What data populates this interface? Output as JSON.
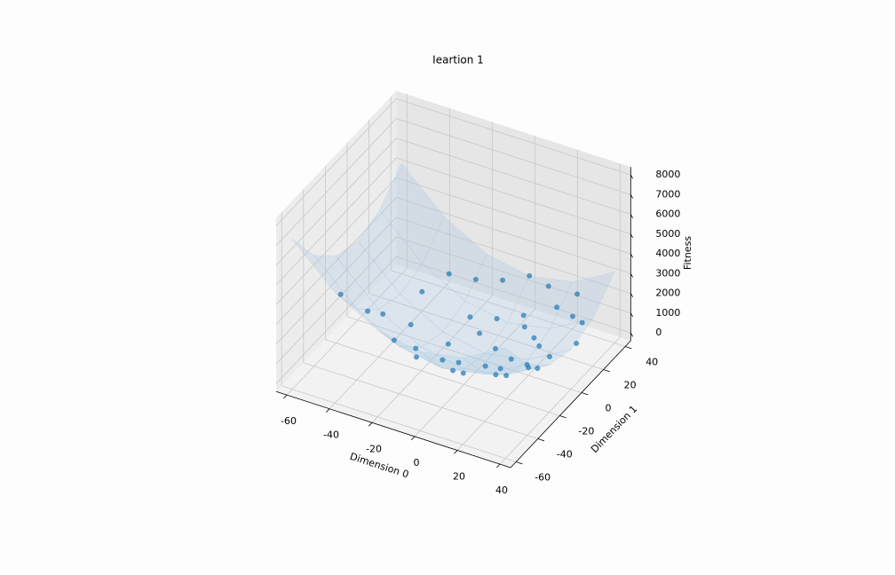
{
  "chart_data": {
    "type": "scatter3d",
    "title": "Ieartion 1",
    "xlabel": "Dimension 0",
    "ylabel": "Dimension 1",
    "zlabel": "Fitness",
    "xlim": [
      -65,
      45
    ],
    "ylim": [
      -65,
      45
    ],
    "zlim": [
      -400,
      8400
    ],
    "xticks": [
      -60,
      -40,
      -20,
      0,
      20,
      40
    ],
    "yticks": [
      -60,
      -40,
      -20,
      0,
      20,
      40
    ],
    "zticks": [
      0,
      1000,
      2000,
      3000,
      4000,
      5000,
      6000,
      7000,
      8000
    ],
    "grid": true,
    "color": "#1f77b4",
    "surface_color": "#a9c8e0",
    "x": [
      -40,
      -38,
      -30,
      -25,
      -20,
      -15,
      -12,
      -10,
      -8,
      -5,
      0,
      2,
      5,
      8,
      10,
      12,
      15,
      18,
      20,
      22,
      25,
      28,
      30,
      32,
      35,
      38,
      40,
      -35,
      -30,
      -20,
      -10,
      0,
      10,
      5,
      -5,
      15,
      25,
      -45,
      30,
      -15
    ],
    "y": [
      -30,
      -20,
      -10,
      -35,
      -25,
      -5,
      -40,
      -20,
      10,
      -15,
      -30,
      5,
      -10,
      20,
      -40,
      0,
      -20,
      30,
      10,
      -5,
      -30,
      25,
      0,
      -15,
      20,
      -35,
      5,
      10,
      25,
      30,
      35,
      40,
      38,
      25,
      20,
      15,
      35,
      -45,
      -45,
      15
    ],
    "z": [
      2500,
      1844,
      1000,
      1850,
      1025,
      250,
      1744,
      500,
      164,
      250,
      900,
      29,
      125,
      464,
      1700,
      144,
      625,
      1224,
      500,
      509,
      1525,
      1409,
      900,
      1249,
      1625,
      2669,
      1625,
      1325,
      1525,
      1300,
      1325,
      1600,
      1544,
      650,
      425,
      450,
      1850,
      4050,
      2925,
      450
    ],
    "surface": {
      "x": [
        -60,
        -40,
        -20,
        0,
        20,
        40
      ],
      "y": [
        -60,
        -40,
        -20,
        0,
        20,
        40
      ],
      "z": [
        [
          7200,
          5200,
          4000,
          3600,
          4000,
          5200
        ],
        [
          5200,
          3200,
          2000,
          1600,
          2000,
          3200
        ],
        [
          4000,
          2000,
          800,
          400,
          800,
          2000
        ],
        [
          3600,
          1600,
          400,
          0,
          400,
          1600
        ],
        [
          4000,
          2000,
          800,
          400,
          800,
          2000
        ],
        [
          5200,
          3200,
          2000,
          1600,
          2000,
          3200
        ]
      ]
    }
  }
}
